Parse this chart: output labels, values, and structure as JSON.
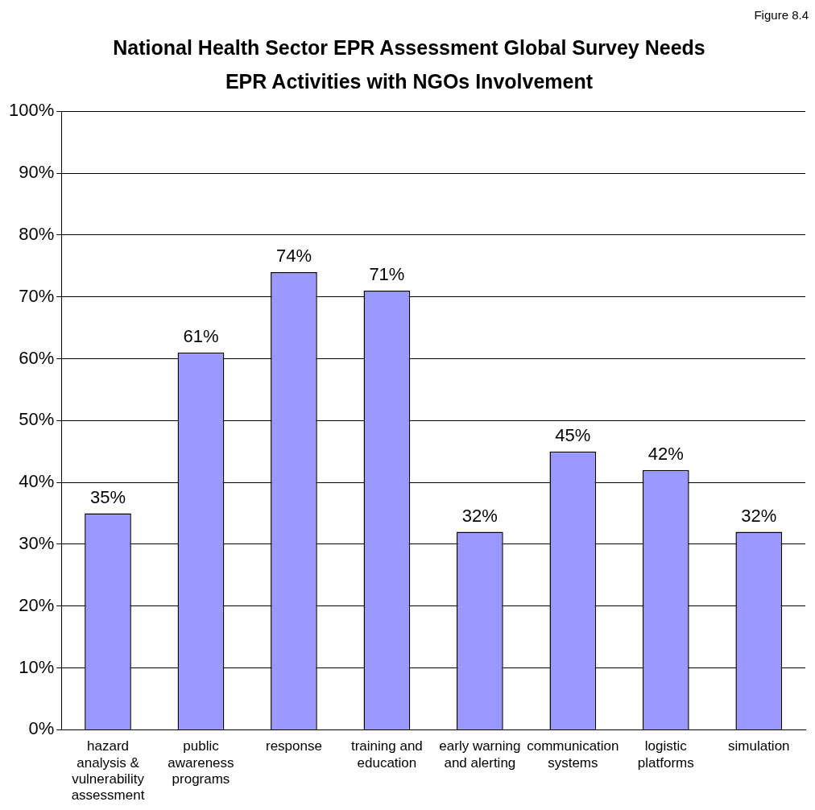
{
  "chart_data": {
    "type": "bar",
    "title": "National Health Sector EPR Assessment Global Survey Needs EPR Activities with NGOs Involvement",
    "annotations": [
      "Figure 8.4"
    ],
    "categories": [
      "hazard analysis & vulnerability assessment",
      "public awareness programs",
      "response",
      "training and education",
      "early warning and alerting",
      "communication systems",
      "logistic platforms",
      "simulation"
    ],
    "values": [
      35,
      61,
      74,
      71,
      32,
      45,
      42,
      32
    ],
    "value_labels": [
      "35%",
      "61%",
      "74%",
      "71%",
      "32%",
      "45%",
      "42%",
      "32%"
    ],
    "color": "#9999ff",
    "ylim": [
      0,
      100
    ],
    "yticks": [
      {
        "value": 0,
        "label": "0%"
      },
      {
        "value": 10,
        "label": "10%"
      },
      {
        "value": 20,
        "label": "20%"
      },
      {
        "value": 30,
        "label": "30%"
      },
      {
        "value": 40,
        "label": "40%"
      },
      {
        "value": 50,
        "label": "50%"
      },
      {
        "value": 60,
        "label": "60%"
      },
      {
        "value": 70,
        "label": "70%"
      },
      {
        "value": 80,
        "label": "80%"
      },
      {
        "value": 90,
        "label": "90%"
      },
      {
        "value": 100,
        "label": "100%"
      }
    ],
    "grid": "y",
    "legend": false
  }
}
